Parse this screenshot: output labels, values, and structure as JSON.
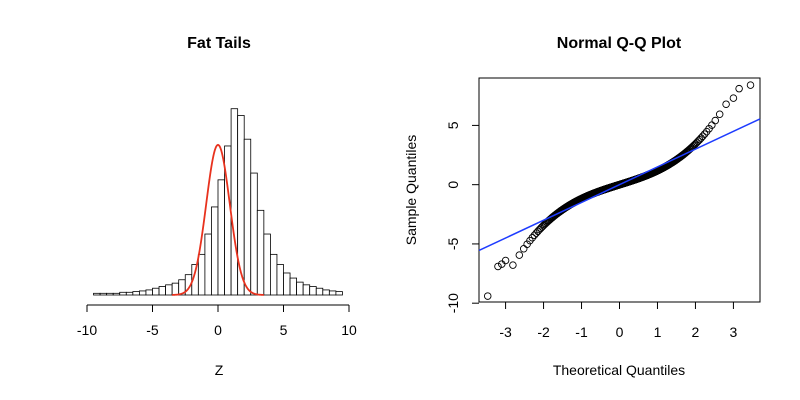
{
  "chart_data": [
    {
      "type": "bar",
      "subtype": "histogram",
      "title": "Fat Tails",
      "xlabel": "Z",
      "ylabel": "",
      "xlim": [
        -10,
        10
      ],
      "xticks": [
        -10,
        -5,
        0,
        5,
        10
      ],
      "bin_width": 0.5,
      "bin_start": -9.5,
      "values": [
        0.005,
        0.005,
        0.005,
        0.005,
        0.008,
        0.008,
        0.01,
        0.012,
        0.015,
        0.02,
        0.025,
        0.03,
        0.035,
        0.045,
        0.06,
        0.09,
        0.12,
        0.18,
        0.26,
        0.34,
        0.44,
        0.55,
        0.53,
        0.46,
        0.36,
        0.25,
        0.18,
        0.12,
        0.09,
        0.065,
        0.05,
        0.038,
        0.03,
        0.025,
        0.02,
        0.015,
        0.012,
        0.01
      ],
      "curve": {
        "name": "normal density",
        "color": "#e8321e",
        "mean": 0,
        "sd": 0.9
      },
      "ylim": [
        0,
        0.62
      ]
    },
    {
      "type": "scatter",
      "title": "Normal Q-Q Plot",
      "xlabel": "Theoretical Quantiles",
      "ylabel": "Sample Quantiles",
      "xlim": [
        -3.7,
        3.7
      ],
      "ylim": [
        -9.9,
        9.0
      ],
      "xticks": [
        -3,
        -2,
        -1,
        0,
        1,
        2,
        3
      ],
      "yticks": [
        -10,
        -5,
        0,
        5
      ],
      "line": {
        "intercept": 0,
        "slope": 1.5,
        "color": "#1e3cff"
      },
      "points": [
        [
          -3.47,
          -9.4
        ],
        [
          -3.2,
          -6.9
        ],
        [
          -3.1,
          -6.7
        ],
        [
          -3.0,
          -6.4
        ],
        [
          3.0,
          7.3
        ],
        [
          3.15,
          8.1
        ],
        [
          3.45,
          8.4
        ]
      ],
      "n_points": 5000
    }
  ]
}
